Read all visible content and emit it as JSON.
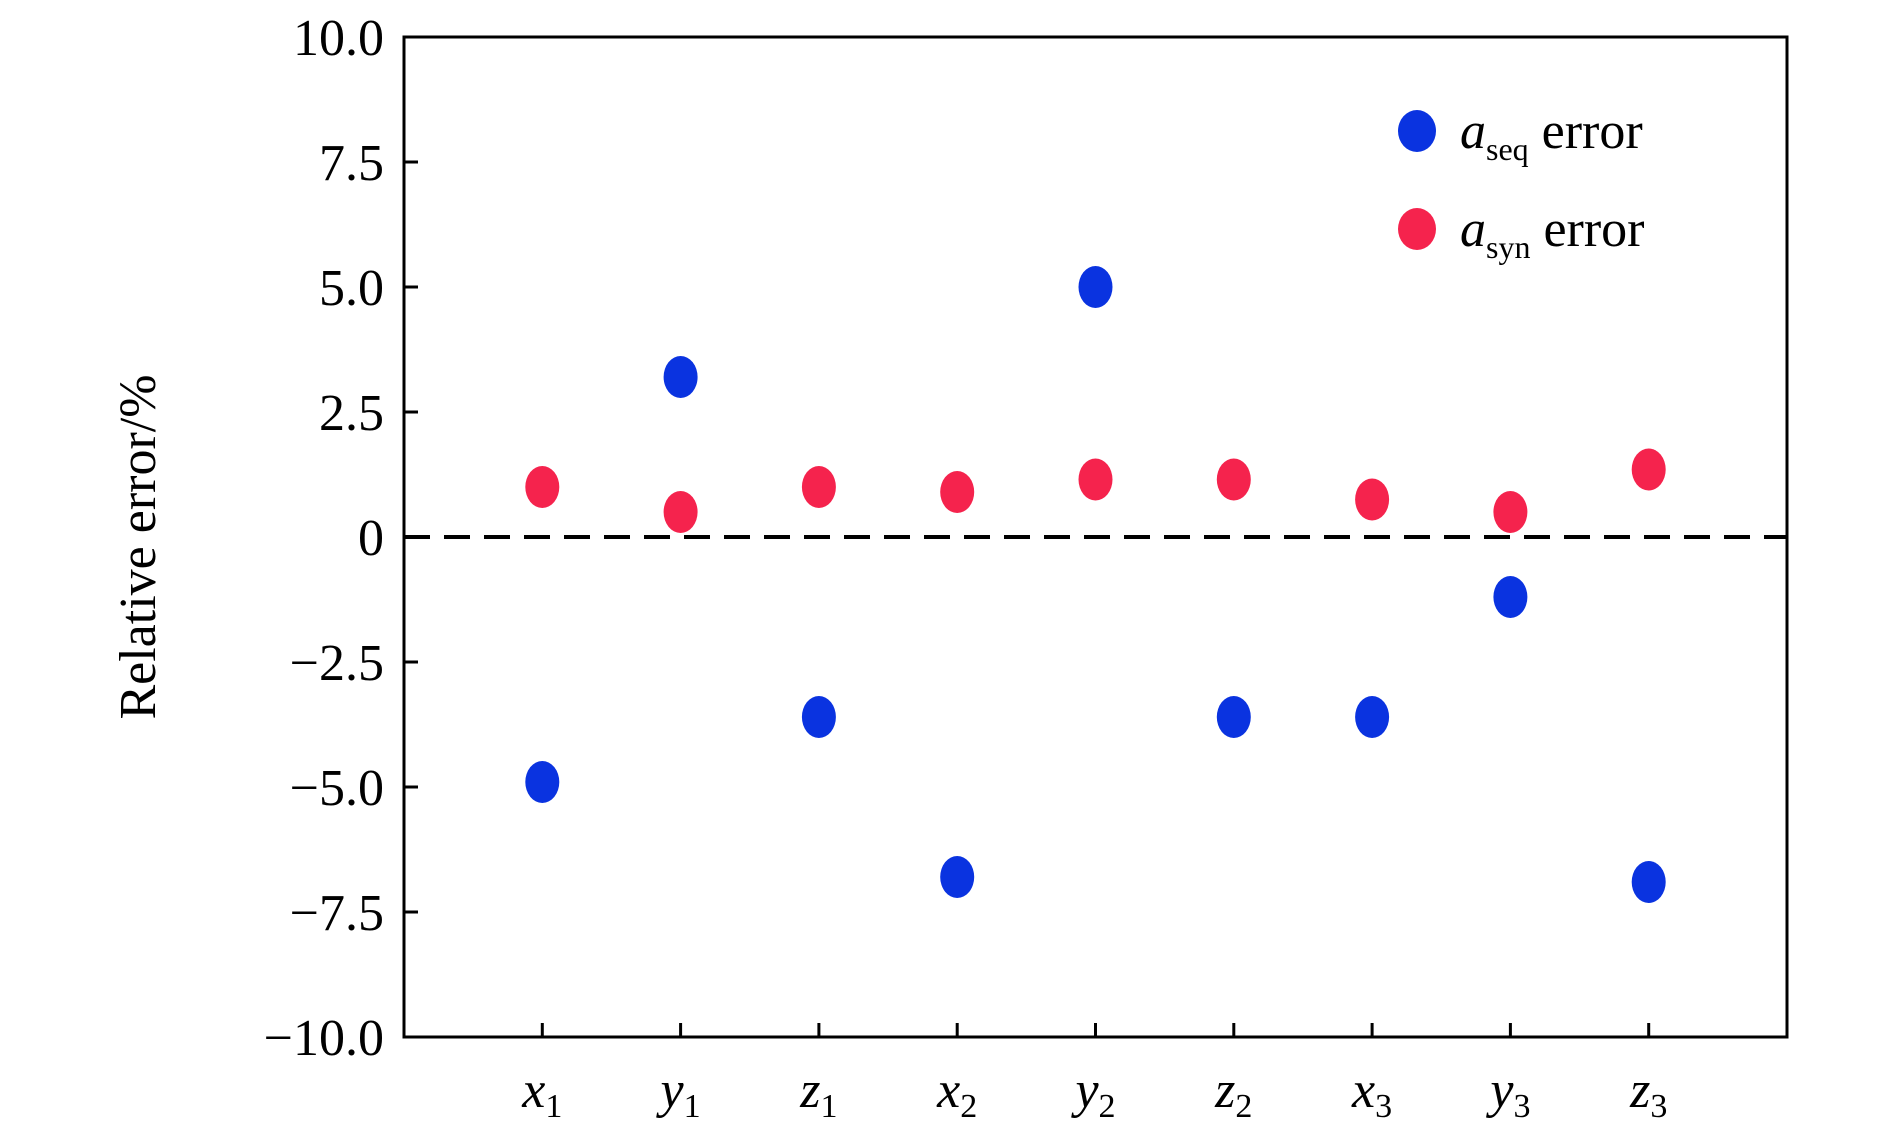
{
  "chart_data": {
    "type": "scatter",
    "ylabel": "Relative error/%",
    "ylim": [
      -10.0,
      10.0
    ],
    "yticks": [
      10.0,
      7.5,
      5.0,
      2.5,
      0,
      -2.5,
      -5.0,
      -7.5,
      -10.0
    ],
    "ytick_labels": [
      "10.0",
      "7.5",
      "5.0",
      "2.5",
      "0",
      "−2.5",
      "−5.0",
      "−7.5",
      "−10.0"
    ],
    "categories": [
      {
        "var": "x",
        "sub": "1"
      },
      {
        "var": "y",
        "sub": "1"
      },
      {
        "var": "z",
        "sub": "1"
      },
      {
        "var": "x",
        "sub": "2"
      },
      {
        "var": "y",
        "sub": "2"
      },
      {
        "var": "z",
        "sub": "2"
      },
      {
        "var": "x",
        "sub": "3"
      },
      {
        "var": "y",
        "sub": "3"
      },
      {
        "var": "z",
        "sub": "3"
      }
    ],
    "reference_line": 0,
    "legend_position": "top-right",
    "series": [
      {
        "name": "a_seq error",
        "legend_main": "a",
        "legend_sub": "seq",
        "legend_tail": " error",
        "color": "#0a33e0",
        "values": [
          -4.9,
          3.2,
          -3.6,
          -6.8,
          5.0,
          -3.6,
          -3.6,
          -1.2,
          -6.9
        ]
      },
      {
        "name": "a_syn error",
        "legend_main": "a",
        "legend_sub": "syn",
        "legend_tail": " error",
        "color": "#f5234d",
        "values": [
          1.0,
          0.5,
          1.0,
          0.9,
          1.15,
          1.15,
          0.75,
          0.5,
          1.35
        ]
      }
    ]
  }
}
